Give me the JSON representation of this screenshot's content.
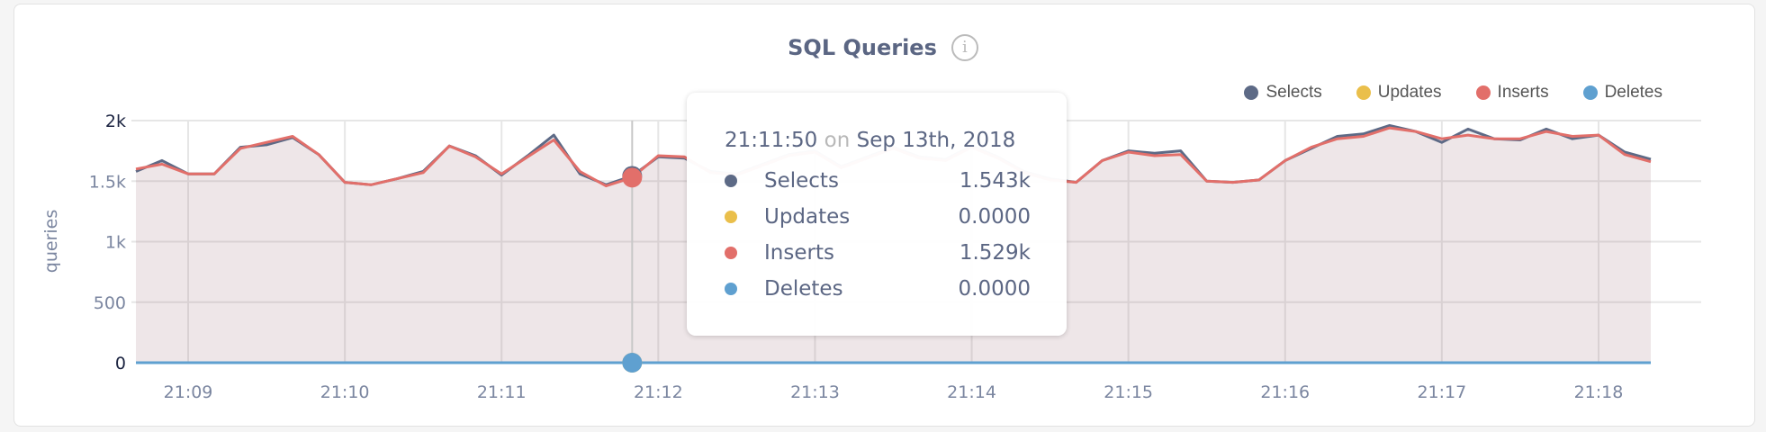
{
  "card": {
    "title": "SQL Queries",
    "info_icon": "info-circle-icon"
  },
  "legend": [
    {
      "label": "Selects",
      "color": "#5d6a86"
    },
    {
      "label": "Updates",
      "color": "#eabf4b"
    },
    {
      "label": "Inserts",
      "color": "#e26f6a"
    },
    {
      "label": "Deletes",
      "color": "#5fa0d0"
    }
  ],
  "tooltip": {
    "time": "21:11:50",
    "on": "on",
    "date": "Sep 13th, 2018",
    "rows": [
      {
        "label": "Selects",
        "value": "1.543k",
        "color": "#5d6a86"
      },
      {
        "label": "Updates",
        "value": "0.0000",
        "color": "#eabf4b"
      },
      {
        "label": "Inserts",
        "value": "1.529k",
        "color": "#e26f6a"
      },
      {
        "label": "Deletes",
        "value": "0.0000",
        "color": "#5fa0d0"
      }
    ]
  },
  "chart_data": {
    "type": "area",
    "title": "SQL Queries",
    "ylabel": "queries",
    "xlabel": "",
    "ylim": [
      0,
      2000
    ],
    "y_ticks": [
      "0",
      "500",
      "1k",
      "1.5k",
      "2k"
    ],
    "y_tick_values": [
      0,
      500,
      1000,
      1500,
      2000
    ],
    "x_ticks": [
      "21:09",
      "21:10",
      "21:11",
      "21:12",
      "21:13",
      "21:14",
      "21:15",
      "21:16",
      "21:17",
      "21:18"
    ],
    "x_start": "21:08:40",
    "x_end": "21:18:20",
    "x_interval": "10s",
    "grid": true,
    "legend_position": "top-right",
    "hover_time": "21:11:50",
    "series": [
      {
        "name": "Selects",
        "color": "#5d6a86",
        "values": [
          1580,
          1670,
          1560,
          1560,
          1780,
          1800,
          1860,
          1720,
          1490,
          1470,
          1520,
          1580,
          1790,
          1710,
          1550,
          1710,
          1880,
          1560,
          1470,
          1543,
          1700,
          1690,
          1580,
          1560,
          1640,
          1720,
          1750,
          1620,
          1700,
          1780,
          1700,
          1680,
          1790,
          1700,
          1580,
          1520,
          1490,
          1670,
          1750,
          1730,
          1750,
          1500,
          1490,
          1510,
          1670,
          1770,
          1870,
          1890,
          1960,
          1910,
          1820,
          1930,
          1850,
          1840,
          1930,
          1850,
          1880,
          1740,
          1680
        ]
      },
      {
        "name": "Updates",
        "color": "#eabf4b",
        "values": [
          0,
          0,
          0,
          0,
          0,
          0,
          0,
          0,
          0,
          0,
          0,
          0,
          0,
          0,
          0,
          0,
          0,
          0,
          0,
          0,
          0,
          0,
          0,
          0,
          0,
          0,
          0,
          0,
          0,
          0,
          0,
          0,
          0,
          0,
          0,
          0,
          0,
          0,
          0,
          0,
          0,
          0,
          0,
          0,
          0,
          0,
          0,
          0,
          0,
          0,
          0,
          0,
          0,
          0,
          0,
          0,
          0,
          0,
          0
        ]
      },
      {
        "name": "Inserts",
        "color": "#e26f6a",
        "values": [
          1600,
          1640,
          1560,
          1560,
          1770,
          1820,
          1870,
          1720,
          1490,
          1470,
          1520,
          1570,
          1790,
          1700,
          1560,
          1700,
          1840,
          1580,
          1460,
          1529,
          1710,
          1700,
          1570,
          1550,
          1630,
          1710,
          1740,
          1610,
          1690,
          1770,
          1690,
          1670,
          1780,
          1690,
          1570,
          1510,
          1490,
          1670,
          1740,
          1710,
          1720,
          1500,
          1490,
          1510,
          1670,
          1780,
          1850,
          1870,
          1940,
          1910,
          1850,
          1880,
          1850,
          1850,
          1910,
          1870,
          1880,
          1720,
          1660
        ]
      },
      {
        "name": "Deletes",
        "color": "#5fa0d0",
        "values": [
          0,
          0,
          0,
          0,
          0,
          0,
          0,
          0,
          0,
          0,
          0,
          0,
          0,
          0,
          0,
          0,
          0,
          0,
          0,
          0,
          0,
          0,
          0,
          0,
          0,
          0,
          0,
          0,
          0,
          0,
          0,
          0,
          0,
          0,
          0,
          0,
          0,
          0,
          0,
          0,
          0,
          0,
          0,
          0,
          0,
          0,
          0,
          0,
          0,
          0,
          0,
          0,
          0,
          0,
          0,
          0,
          0,
          0,
          0
        ]
      }
    ]
  }
}
